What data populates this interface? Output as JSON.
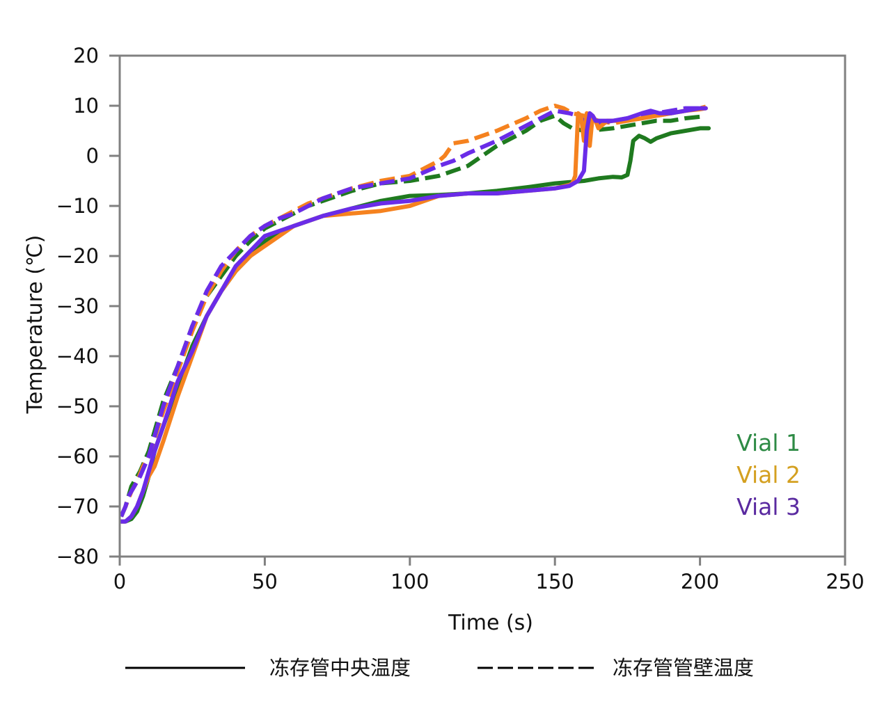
{
  "colors": {
    "vial1": "#1f7a1f",
    "vial2": "#f5821f",
    "vial3": "#6a2ce8",
    "axis": "#808080"
  },
  "chart_data": {
    "type": "line",
    "title": "",
    "xlabel": "Time (s)",
    "ylabel": "Temperature (℃)",
    "xlim": [
      0,
      250
    ],
    "ylim": [
      -80,
      20
    ],
    "xticks": [
      0,
      50,
      100,
      150,
      200,
      250
    ],
    "yticks": [
      20,
      10,
      0,
      -10,
      -20,
      -30,
      -40,
      -50,
      -60,
      -70,
      -80
    ],
    "grid": false,
    "legend": {
      "position": "bottom",
      "entries": [
        {
          "style": "solid",
          "label": "冻存管中央温度"
        },
        {
          "style": "dashed",
          "label": "冻存管管壁温度"
        }
      ]
    },
    "vial_labels": [
      {
        "text": "Vial 1",
        "color": "#2e8b45"
      },
      {
        "text": "Vial 2",
        "color": "#d4a020"
      },
      {
        "text": "Vial 3",
        "color": "#5a2aa0"
      }
    ],
    "series": [
      {
        "name": "Vial 1",
        "vial": 1,
        "kind": "center",
        "dash": "solid",
        "color": "#1f7a1f",
        "x": [
          0.5,
          2,
          4,
          6,
          8,
          10,
          12,
          15,
          20,
          25,
          30,
          35,
          40,
          45,
          50,
          60,
          70,
          80,
          90,
          100,
          110,
          120,
          130,
          140,
          150,
          160,
          165,
          170,
          173,
          175,
          176,
          177,
          179,
          181,
          183,
          185,
          190,
          195,
          200,
          203
        ],
        "y": [
          -73,
          -73,
          -72.5,
          -71,
          -68,
          -64,
          -59,
          -54,
          -46,
          -38,
          -32,
          -27,
          -23,
          -20,
          -17,
          -14,
          -12,
          -10.5,
          -9,
          -8,
          -7.8,
          -7.5,
          -7,
          -6.3,
          -5.5,
          -5,
          -4.5,
          -4.2,
          -4.3,
          -3.8,
          -1,
          3,
          4,
          3.5,
          2.8,
          3.5,
          4.5,
          5,
          5.5,
          5.5
        ]
      },
      {
        "name": "Vial 2",
        "vial": 2,
        "kind": "center",
        "dash": "solid",
        "color": "#f5821f",
        "x": [
          0.5,
          2,
          4,
          6,
          8,
          10,
          12,
          15,
          20,
          25,
          30,
          35,
          40,
          45,
          50,
          60,
          70,
          80,
          90,
          100,
          110,
          120,
          130,
          140,
          150,
          155,
          156,
          157,
          158,
          159,
          160,
          161,
          161.5,
          162,
          163,
          164,
          165,
          166,
          168,
          170,
          175,
          180,
          185,
          190,
          195,
          200,
          202
        ],
        "y": [
          -73,
          -73,
          -72,
          -70,
          -67,
          -64,
          -62,
          -57,
          -48,
          -40,
          -32,
          -27,
          -23,
          -20,
          -18,
          -14,
          -12,
          -11.5,
          -11,
          -10,
          -8,
          -7.5,
          -7.5,
          -7,
          -6.5,
          -5.8,
          -5.5,
          -4,
          8.5,
          8,
          3,
          8.5,
          4,
          2,
          8,
          7,
          5.5,
          6,
          7,
          7,
          7,
          7.5,
          8,
          8.5,
          9,
          9.3,
          9.5
        ]
      },
      {
        "name": "Vial 3",
        "vial": 3,
        "kind": "center",
        "dash": "solid",
        "color": "#6a2ce8",
        "x": [
          0.5,
          2,
          4,
          6,
          8,
          10,
          12,
          15,
          20,
          25,
          30,
          35,
          40,
          45,
          50,
          60,
          70,
          80,
          90,
          100,
          110,
          120,
          130,
          140,
          150,
          155,
          158,
          160,
          161,
          162,
          163,
          164,
          166,
          170,
          175,
          180,
          183,
          186,
          190,
          195,
          200,
          202
        ],
        "y": [
          -73,
          -73,
          -72,
          -70,
          -67,
          -63,
          -59,
          -54,
          -45,
          -39,
          -32,
          -27,
          -22,
          -19,
          -16,
          -14,
          -12,
          -10.5,
          -9.5,
          -9,
          -8,
          -7.5,
          -7.5,
          -7,
          -6.5,
          -6,
          -5,
          -3,
          5,
          8.5,
          8,
          7,
          7,
          7,
          7.5,
          8.5,
          9,
          8.5,
          8.5,
          9,
          9.5,
          9.5
        ]
      },
      {
        "name": "Vial 1",
        "vial": 1,
        "kind": "wall",
        "dash": "dashed",
        "color": "#1f7a1f",
        "x": [
          0.5,
          2,
          3,
          4,
          5,
          7,
          10,
          15,
          20,
          25,
          30,
          35,
          40,
          45,
          50,
          55,
          60,
          65,
          70,
          80,
          90,
          100,
          110,
          115,
          120,
          130,
          140,
          145,
          150,
          153,
          156,
          160,
          165,
          170,
          175,
          180,
          185,
          190,
          195,
          200,
          202
        ],
        "y": [
          -72,
          -70,
          -68,
          -66,
          -65,
          -63,
          -59,
          -49,
          -42,
          -34,
          -28,
          -24,
          -20,
          -17,
          -14.5,
          -13,
          -11.5,
          -10,
          -9,
          -7,
          -5.5,
          -5,
          -4,
          -3,
          -2,
          2,
          5,
          7,
          8,
          6.5,
          5.5,
          5,
          5.2,
          5.5,
          6,
          6.5,
          7,
          7,
          7.5,
          7.8,
          7.8
        ]
      },
      {
        "name": "Vial 2",
        "vial": 2,
        "kind": "wall",
        "dash": "dashed",
        "color": "#f5821f",
        "x": [
          0.5,
          2,
          4,
          6,
          8,
          10,
          15,
          20,
          25,
          30,
          35,
          40,
          45,
          50,
          55,
          60,
          65,
          70,
          80,
          90,
          100,
          110,
          112,
          115,
          120,
          130,
          140,
          145,
          150,
          153,
          156,
          160,
          165,
          170,
          175,
          180,
          185,
          190,
          195,
          200,
          202
        ],
        "y": [
          -72,
          -70,
          -67,
          -65,
          -62,
          -60,
          -51,
          -43,
          -35,
          -28,
          -23,
          -19,
          -16,
          -14,
          -12.5,
          -11,
          -9.5,
          -8.5,
          -6.5,
          -5,
          -4,
          -1,
          0,
          2.5,
          3,
          5,
          7.5,
          9,
          10,
          9.5,
          8.5,
          8,
          7,
          6.5,
          7,
          7.5,
          8,
          8.5,
          9,
          9.5,
          9.8
        ]
      },
      {
        "name": "Vial 3",
        "vial": 3,
        "kind": "wall",
        "dash": "dashed",
        "color": "#6a2ce8",
        "x": [
          0.5,
          2,
          3,
          5,
          7,
          10,
          15,
          20,
          25,
          30,
          35,
          40,
          45,
          50,
          55,
          60,
          70,
          80,
          90,
          100,
          110,
          115,
          120,
          130,
          140,
          145,
          150,
          155,
          158,
          160,
          165,
          170,
          175,
          180,
          185,
          190,
          195,
          200,
          202
        ],
        "y": [
          -72,
          -70,
          -68,
          -66,
          -64,
          -60,
          -50,
          -42,
          -34,
          -27,
          -22,
          -19,
          -16,
          -14,
          -12.5,
          -11.5,
          -8.5,
          -6.5,
          -5.5,
          -4.5,
          -2,
          -1,
          0.5,
          3,
          6,
          7.5,
          9,
          8.5,
          8,
          7,
          6.5,
          7,
          7.5,
          8,
          8.5,
          9,
          9.5,
          9.5,
          9.5
        ]
      }
    ]
  }
}
